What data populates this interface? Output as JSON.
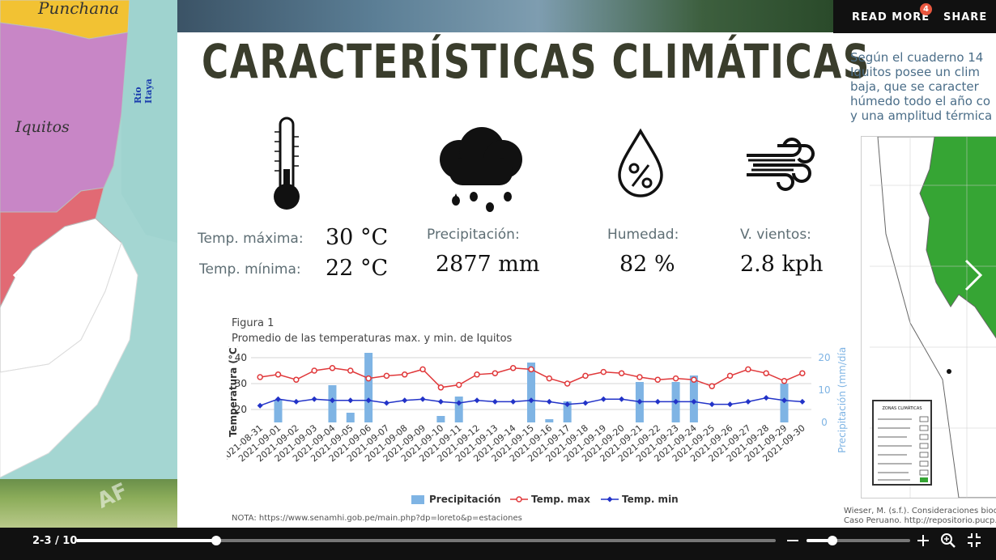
{
  "map": {
    "label_punchana": "Punchana",
    "label_iquitos": "Iquitos",
    "label_river": "Río Itaya",
    "watermark": "AF"
  },
  "header": {
    "read_more": "READ MORE",
    "badge": "4",
    "share": "SHARE"
  },
  "slide": {
    "title": "CARACTERÍSTICAS CLIMÁTICAS",
    "side_text": [
      "Según el cuaderno 14",
      "Iquitos posee un clim",
      "baja, que se caracter",
      "húmedo todo el año co",
      "y una amplitud térmica"
    ],
    "temp_max_label": "Temp. máxima:",
    "temp_max_value": "30 °C",
    "temp_min_label": "Temp. mínima:",
    "temp_min_value": "22 °C",
    "precip_label": "Precipitación:",
    "precip_value": "2877 mm",
    "humidity_label": "Humedad:",
    "humidity_value": "82 %",
    "wind_label": "V. vientos:",
    "wind_value": "2.8 kph",
    "figure_label": "Figura 1",
    "figure_caption": "Promedio de las temperaturas max. y min. de Iquitos",
    "note": "NOTA: https://www.senamhi.gob.pe/main.php?dp=loreto&p=estaciones",
    "citation_1": "Wieser, M. (s.f.). Consideraciones bioclimá",
    "citation_2": "Caso Peruano. http://repositorio.pucp.edu",
    "minimap_legend_title": "ZONAS CLIMÁTICAS"
  },
  "icons": {
    "thermometer": "thermometer-icon",
    "rain": "rain-cloud-icon",
    "humidity": "humidity-drop-icon",
    "wind": "wind-icon",
    "prev": "chevron-left-icon",
    "next": "chevron-right-icon"
  },
  "controls": {
    "pager": "2-3 / 10",
    "progress": 0.2,
    "zoom": 0.25
  },
  "chart_data": {
    "type": "bar",
    "title": "",
    "ylabel": "Temperatura (°C)",
    "y2label": "Precipitación (mm/día)",
    "ylim": [
      15,
      40
    ],
    "y2lim": [
      0,
      20
    ],
    "yticks": [
      20,
      30,
      40
    ],
    "y2ticks": [
      0,
      10,
      20
    ],
    "grid": true,
    "legend_position": "bottom",
    "categories": [
      "2021-08-31",
      "2021-09-01",
      "2021-09-02",
      "2021-09-03",
      "2021-09-04",
      "2021-09-05",
      "2021-09-06",
      "2021-09-07",
      "2021-09-08",
      "2021-09-09",
      "2021-09-10",
      "2021-09-11",
      "2021-09-12",
      "2021-09-13",
      "2021-09-14",
      "2021-09-15",
      "2021-09-16",
      "2021-09-17",
      "2021-09-18",
      "2021-09-19",
      "2021-09-20",
      "2021-09-21",
      "2021-09-22",
      "2021-09-23",
      "2021-09-24",
      "2021-09-25",
      "2021-09-26",
      "2021-09-27",
      "2021-09-28",
      "2021-09-29",
      "2021-09-30"
    ],
    "series": [
      {
        "name": "Precipitación",
        "type": "bar",
        "axis": "right",
        "color": "#7fb4e4",
        "values": [
          0,
          7,
          0,
          0,
          11.5,
          3,
          21.5,
          0,
          0,
          0,
          2,
          8,
          0,
          0,
          0,
          18.5,
          1,
          6.5,
          0,
          0,
          0,
          12.5,
          0,
          12.5,
          14.5,
          0,
          0,
          0,
          0,
          12,
          0
        ]
      },
      {
        "name": "Temp. max",
        "type": "line",
        "axis": "left",
        "color": "#e0383a",
        "values": [
          32.5,
          33.5,
          31.5,
          35,
          36,
          35,
          32,
          33,
          33.5,
          35.5,
          28.5,
          29.5,
          33.5,
          34,
          36,
          35.5,
          32,
          30,
          33,
          34.5,
          34,
          32.5,
          31.5,
          32,
          31.5,
          29,
          33,
          35.5,
          34,
          31,
          34
        ]
      },
      {
        "name": "Temp. min",
        "type": "line",
        "axis": "left",
        "color": "#2233c8",
        "values": [
          21.5,
          24,
          23,
          24,
          23.5,
          23.5,
          23.5,
          22.5,
          23.5,
          24,
          23,
          22.5,
          23.5,
          23,
          23,
          23.5,
          23,
          22,
          22.5,
          24,
          24,
          23,
          23,
          23,
          23,
          22,
          22,
          23,
          24.5,
          23.5,
          23
        ]
      }
    ]
  }
}
